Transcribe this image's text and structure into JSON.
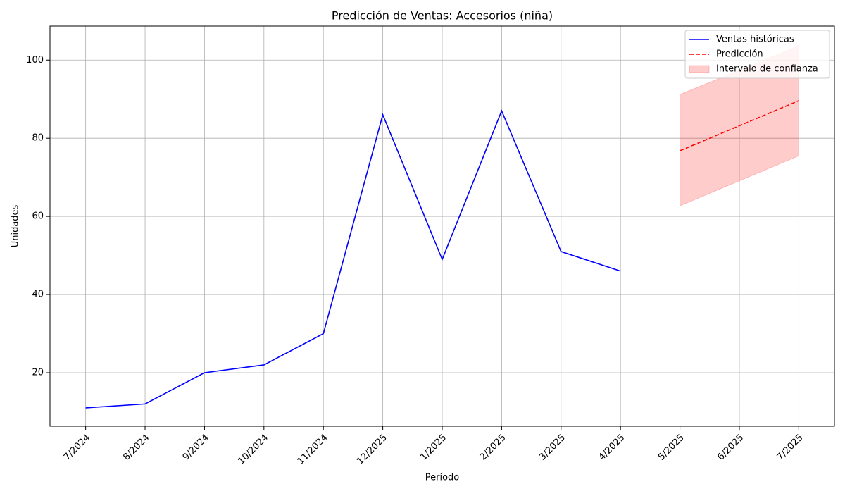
{
  "chart_data": {
    "type": "line",
    "title": "Predicción de Ventas: Accesorios (niña)",
    "xlabel": "Período",
    "ylabel": "Unidades",
    "categories": [
      "7/2024",
      "8/2024",
      "9/2024",
      "10/2024",
      "11/2024",
      "12/2025",
      "1/2025",
      "2/2025",
      "3/2025",
      "4/2025",
      "5/2025",
      "6/2025",
      "7/2025"
    ],
    "series": [
      {
        "name": "Ventas históricas",
        "color": "#0000ff",
        "dash": false,
        "values": [
          11,
          12,
          20,
          22,
          30,
          86,
          49,
          87,
          51,
          46,
          null,
          null,
          null
        ]
      },
      {
        "name": "Predicción",
        "color": "#ff0000",
        "dash": true,
        "values": [
          null,
          null,
          null,
          null,
          null,
          null,
          null,
          null,
          null,
          null,
          76.8,
          83.2,
          89.6
        ]
      }
    ],
    "band": {
      "name": "Intervalo de confianza",
      "color": "#ff0000",
      "lower": [
        null,
        null,
        null,
        null,
        null,
        null,
        null,
        null,
        null,
        null,
        62.7,
        69.1,
        75.5
      ],
      "upper": [
        null,
        null,
        null,
        null,
        null,
        null,
        null,
        null,
        null,
        null,
        91.2,
        97.4,
        103.6
      ]
    },
    "ylim": [
      6.3,
      108.7
    ],
    "yticks": [
      20,
      40,
      60,
      80,
      100
    ],
    "grid": true,
    "legend": "upper right"
  }
}
